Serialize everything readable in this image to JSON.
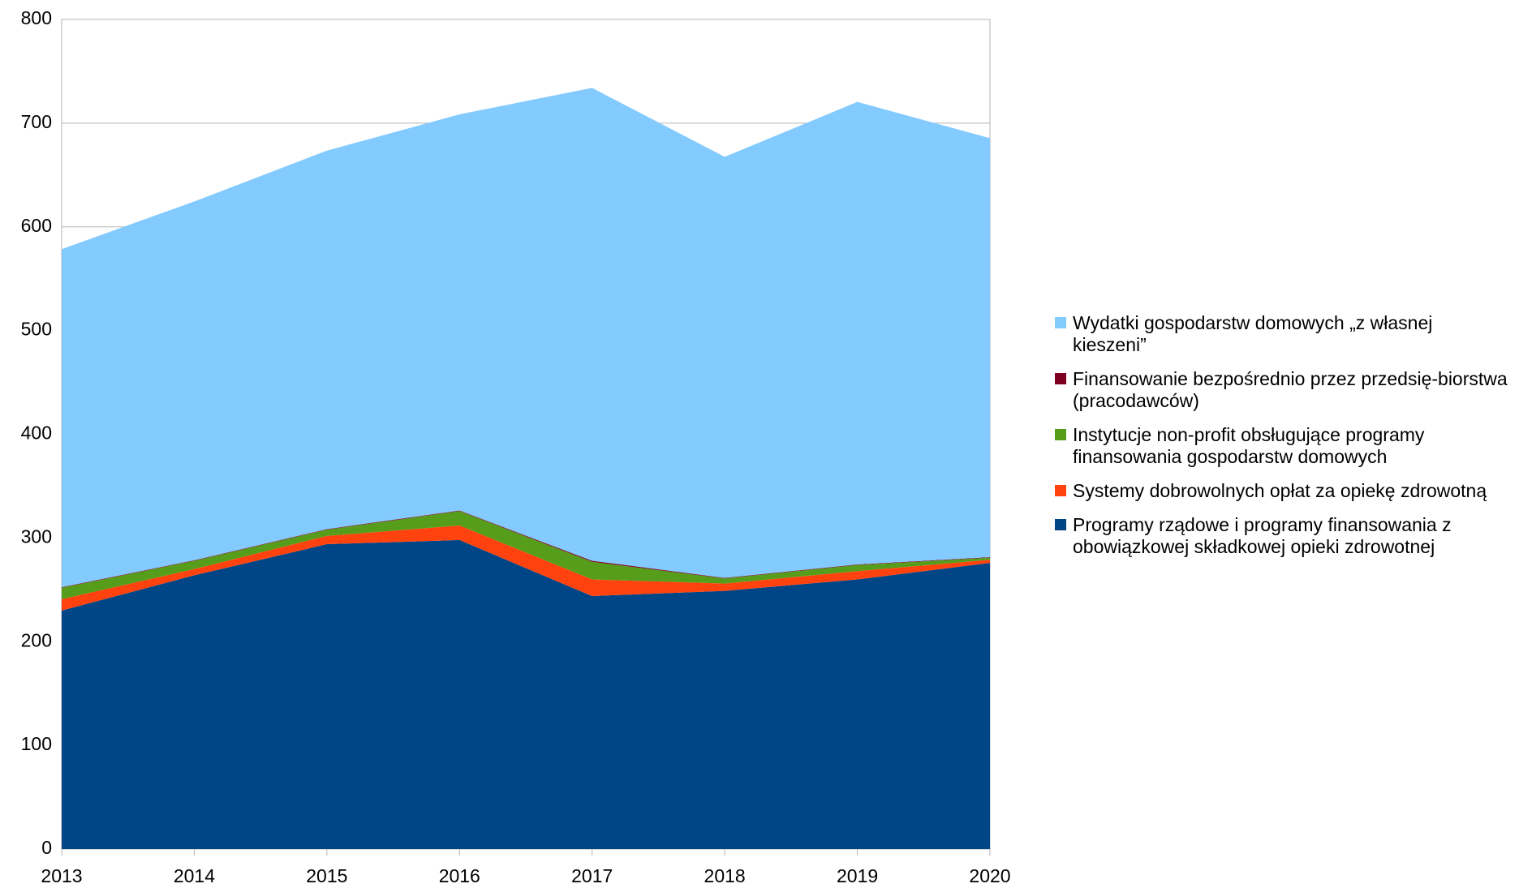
{
  "chart_data": {
    "type": "stacked_area",
    "categories": [
      "2013",
      "2014",
      "2015",
      "2016",
      "2017",
      "2018",
      "2019",
      "2020"
    ],
    "series": [
      {
        "name": "Programy rządowe i programy finansowania z obowiązkowej składkowej opieki zdrowotnej",
        "color": "#004586",
        "values": [
          230,
          264,
          294,
          298,
          244,
          249,
          260,
          276
        ]
      },
      {
        "name": "Systemy dobrowolnych opłat za opiekę zdrowotną",
        "color": "#ff420e",
        "values": [
          11,
          6,
          8,
          14,
          16,
          7,
          8,
          3
        ]
      },
      {
        "name": "Instytucje non-profit obsługujące programy finansowania gospodarstw domowych",
        "color": "#579d1c",
        "values": [
          11,
          8,
          6,
          14,
          17,
          5,
          6,
          2
        ]
      },
      {
        "name": "Finansowanie bezpośrednio przez przedsię-biorstwa (pracodawców)",
        "color": "#7e0021",
        "values": [
          0.5,
          0.5,
          0.5,
          0.5,
          1,
          0.5,
          0.5,
          0.5
        ]
      },
      {
        "name": "Wydatki gospodarstw domowych „z własnej kieszeni”",
        "color": "#83caff",
        "values": [
          326,
          346,
          365,
          382,
          456,
          406,
          446,
          404
        ]
      }
    ],
    "ylim": [
      0,
      800
    ],
    "yticks": [
      0,
      100,
      200,
      300,
      400,
      500,
      600,
      700,
      800
    ],
    "grid": true,
    "legend": "right"
  }
}
